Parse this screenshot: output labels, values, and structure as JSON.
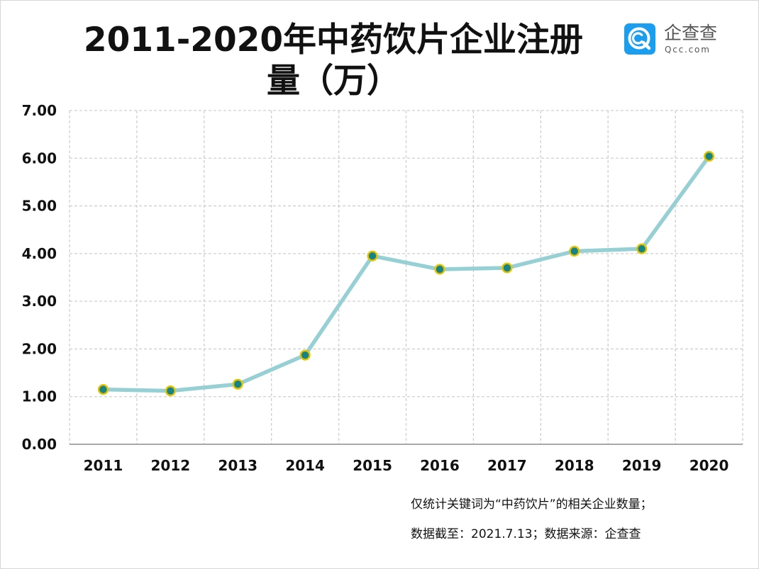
{
  "header": {
    "title": "2011-2020年中药饮片企业注册量（万）"
  },
  "brand": {
    "name": "企查查",
    "domain": "Qcc.com",
    "icon": "qcc-logo-icon",
    "color": "#1b9df0"
  },
  "chart_data": {
    "type": "line",
    "title": "2011-2020年中药饮片企业注册量（万）",
    "xlabel": "",
    "ylabel": "",
    "categories": [
      "2011",
      "2012",
      "2013",
      "2014",
      "2015",
      "2016",
      "2017",
      "2018",
      "2019",
      "2020"
    ],
    "series": [
      {
        "values": [
          1.15,
          1.12,
          1.26,
          1.87,
          3.95,
          3.67,
          3.7,
          4.05,
          4.1,
          6.04
        ],
        "line_color": "#96d0d5",
        "marker_fill": "#168486",
        "marker_border": "#e5c300"
      }
    ],
    "y_ticks": [
      "0.00",
      "1.00",
      "2.00",
      "3.00",
      "4.00",
      "5.00",
      "6.00",
      "7.00"
    ],
    "ylim": [
      0,
      7
    ],
    "grid": true,
    "grid_color": "#cfcfcf",
    "legend": "none"
  },
  "notes": {
    "line1": "仅统计关键词为“中药饮片”的相关企业数量；",
    "line2": "数据截至：2021.7.13；数据来源：企查查"
  }
}
